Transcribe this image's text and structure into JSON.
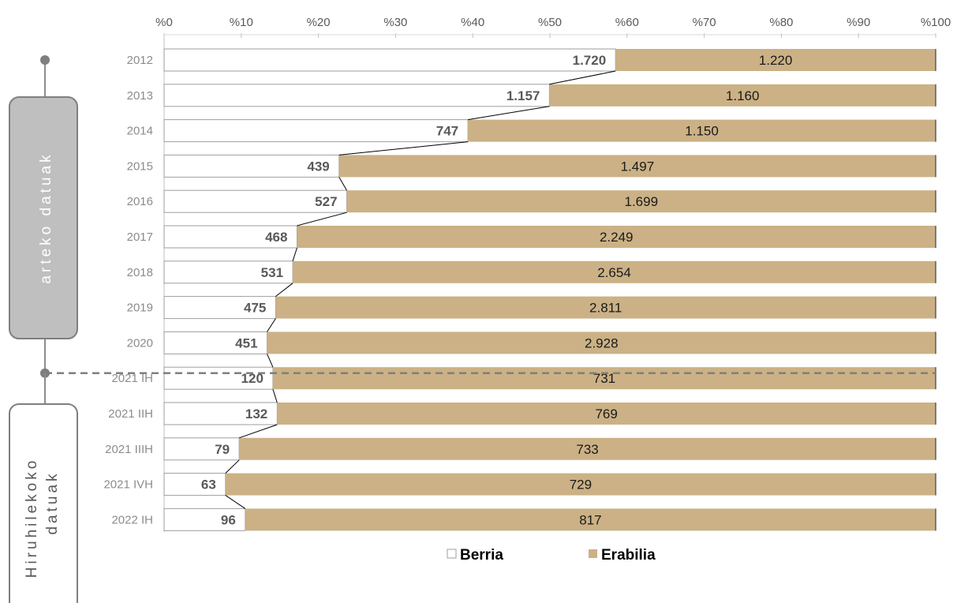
{
  "chart_data": {
    "type": "bar",
    "orientation": "horizontal",
    "stacked": "percent",
    "x_ticks": [
      "%0",
      "%10",
      "%20",
      "%30",
      "%40",
      "%50",
      "%60",
      "%70",
      "%80",
      "%90",
      "%100"
    ],
    "xlim": [
      0,
      100
    ],
    "categories": [
      "2012",
      "2013",
      "2014",
      "2015",
      "2016",
      "2017",
      "2018",
      "2019",
      "2020",
      "2021 IH",
      "2021 IIH",
      "2021 IIIH",
      "2021 IVH",
      "2022 IH"
    ],
    "series": [
      {
        "name": "Berria",
        "color": "#ffffff",
        "values": [
          1720,
          1157,
          747,
          439,
          527,
          468,
          531,
          475,
          451,
          120,
          132,
          79,
          63,
          96
        ],
        "labels": [
          "1.720",
          "1.157",
          "747",
          "439",
          "527",
          "468",
          "531",
          "475",
          "451",
          "120",
          "132",
          "79",
          "63",
          "96"
        ]
      },
      {
        "name": "Erabilia",
        "color": "#cbb185",
        "values": [
          1220,
          1160,
          1150,
          1497,
          1699,
          2249,
          2654,
          2811,
          2928,
          731,
          769,
          733,
          729,
          817
        ],
        "labels": [
          "1.220",
          "1.160",
          "1.150",
          "1.497",
          "1.699",
          "2.249",
          "2.654",
          "2.811",
          "2.928",
          "731",
          "769",
          "733",
          "729",
          "817"
        ]
      }
    ],
    "legend_position": "bottom",
    "grid": false,
    "period_brackets": [
      {
        "label": "arteko datuak",
        "from": "2012",
        "to": "2020"
      },
      {
        "label": "Hiruhilekoko datuak",
        "lines": [
          "Hiruhilekoko",
          "datuak"
        ],
        "from": "2021 IH",
        "to": "2022 IH"
      }
    ]
  }
}
